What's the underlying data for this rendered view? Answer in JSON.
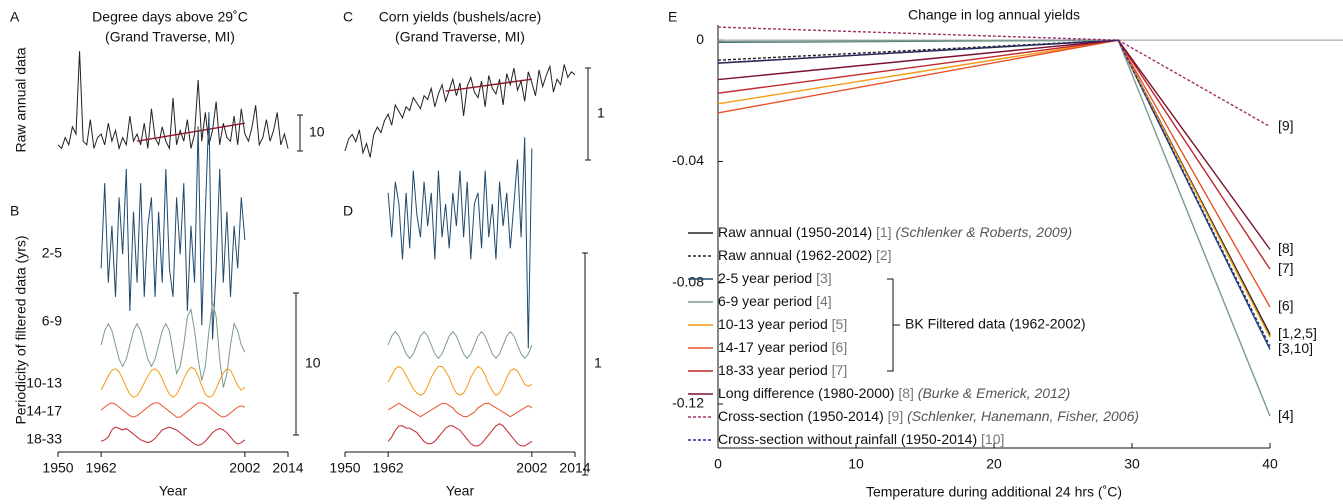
{
  "chart_data": [
    {
      "type": "line",
      "panel": "A",
      "title": [
        "Degree days above 29˚C",
        "(Grand Traverse, MI)"
      ],
      "ylabel": "Raw annual data",
      "scale_bar": 10,
      "xlim": [
        1950,
        2014
      ],
      "x": [
        1950,
        1951,
        1952,
        1953,
        1954,
        1955,
        1956,
        1957,
        1958,
        1959,
        1960,
        1961,
        1962,
        1963,
        1964,
        1965,
        1966,
        1967,
        1968,
        1969,
        1970,
        1971,
        1972,
        1973,
        1974,
        1975,
        1976,
        1977,
        1978,
        1979,
        1980,
        1981,
        1982,
        1983,
        1984,
        1985,
        1986,
        1987,
        1988,
        1989,
        1990,
        1991,
        1992,
        1993,
        1994,
        1995,
        1996,
        1997,
        1998,
        1999,
        2000,
        2001,
        2002,
        2003,
        2004,
        2005,
        2006,
        2007,
        2008,
        2009,
        2010,
        2011,
        2012,
        2013,
        2014
      ],
      "series": [
        {
          "color": "#222222",
          "values": [
            2,
            1,
            4,
            2,
            7,
            5,
            28,
            3,
            2,
            9,
            1,
            4,
            5,
            2,
            8,
            3,
            6,
            1,
            4,
            2,
            10,
            3,
            5,
            2,
            8,
            1,
            12,
            4,
            2,
            7,
            3,
            1,
            15,
            2,
            6,
            3,
            9,
            1,
            5,
            20,
            3,
            11,
            2,
            6,
            14,
            2,
            8,
            4,
            3,
            10,
            2,
            12,
            5,
            3,
            7,
            13,
            2,
            4,
            9,
            3,
            6,
            11,
            2,
            5,
            1
          ]
        },
        {
          "color": "#8b1a2b",
          "x": [
            1972,
            2002
          ],
          "values": [
            3,
            8
          ]
        }
      ]
    },
    {
      "type": "line",
      "panel": "B",
      "ylabel": "Periodicity of filtered data (yrs)",
      "scale_bar": 10,
      "xlim": [
        1950,
        2014
      ],
      "xticks": [
        1950,
        1962,
        2002,
        2014
      ],
      "xlabel": "Year",
      "x": [
        1962,
        1963,
        1964,
        1965,
        1966,
        1967,
        1968,
        1969,
        1970,
        1971,
        1972,
        1973,
        1974,
        1975,
        1976,
        1977,
        1978,
        1979,
        1980,
        1981,
        1982,
        1983,
        1984,
        1985,
        1986,
        1987,
        1988,
        1989,
        1990,
        1991,
        1992,
        1993,
        1994,
        1995,
        1996,
        1997,
        1998,
        1999,
        2000,
        2001,
        2002
      ],
      "series": [
        {
          "name": "2-5",
          "color": "#1e4a6e",
          "values": [
            -2,
            4,
            -3,
            1,
            -4,
            3,
            -1,
            5,
            -5,
            2,
            -3,
            4,
            -4,
            1,
            3,
            -4,
            2,
            -3,
            5,
            -2,
            -4,
            3,
            -1,
            4,
            -5,
            1,
            -3,
            8,
            -6,
            2,
            9,
            -7,
            -2,
            5,
            -3,
            2,
            -4,
            1,
            -2,
            3,
            0
          ]
        },
        {
          "name": "6-9",
          "color": "#7a9a8c",
          "values": [
            0,
            1,
            1.5,
            1,
            0,
            -1,
            -1.5,
            -1,
            0,
            1,
            1.5,
            1,
            0,
            -1,
            -1.5,
            -1,
            0,
            1,
            1.5,
            1,
            -0.5,
            -2,
            -1.5,
            0,
            2,
            2.5,
            1,
            -1,
            -2.5,
            -1.5,
            1,
            3,
            2,
            -1,
            -3,
            -2,
            0,
            1.5,
            1,
            0,
            -0.5
          ]
        },
        {
          "name": "10-13",
          "color": "#f39c12",
          "values": [
            -0.5,
            0,
            0.5,
            0.9,
            1,
            0.8,
            0.3,
            -0.3,
            -0.8,
            -1,
            -0.9,
            -0.5,
            0,
            0.5,
            0.9,
            1,
            0.8,
            0.3,
            -0.3,
            -0.8,
            -1,
            -0.8,
            -0.3,
            0.3,
            0.8,
            1.1,
            1,
            0.5,
            -0.2,
            -0.8,
            -1,
            -0.9,
            -0.4,
            0.2,
            0.7,
            1,
            0.9,
            0.4,
            -0.2,
            -0.5,
            -0.3
          ]
        },
        {
          "name": "14-17",
          "color": "#e8532a",
          "values": [
            0,
            0.2,
            0.4,
            0.5,
            0.4,
            0.2,
            0,
            -0.2,
            -0.4,
            -0.5,
            -0.4,
            -0.2,
            0,
            0.2,
            0.4,
            0.5,
            0.5,
            0.3,
            0.1,
            -0.1,
            -0.3,
            -0.5,
            -0.5,
            -0.3,
            -0.1,
            0.1,
            0.3,
            0.5,
            0.5,
            0.4,
            0.2,
            0,
            -0.2,
            -0.4,
            -0.5,
            -0.4,
            -0.2,
            0,
            0.2,
            0.3,
            0.2
          ]
        },
        {
          "name": "18-33",
          "color": "#c0282d",
          "values": [
            -0.3,
            -0.2,
            0,
            0.5,
            0.7,
            0.6,
            0.5,
            0.6,
            0.4,
            0.2,
            0,
            -0.2,
            -0.3,
            -0.4,
            -0.3,
            -0.1,
            0.2,
            0.5,
            0.6,
            0.7,
            0.6,
            0.5,
            0.3,
            0.1,
            -0.1,
            -0.3,
            -0.5,
            -0.6,
            -0.5,
            -0.3,
            0,
            0.3,
            0.5,
            0.6,
            0.5,
            0.3,
            0,
            -0.3,
            -0.5,
            -0.4,
            -0.2
          ]
        }
      ]
    },
    {
      "type": "line",
      "panel": "C",
      "title": [
        "Corn yields (bushels/acre)",
        "(Grand Traverse, MI)"
      ],
      "scale_bar": 1,
      "xlim": [
        1950,
        2014
      ],
      "x": [
        1950,
        1951,
        1952,
        1953,
        1954,
        1955,
        1956,
        1957,
        1958,
        1959,
        1960,
        1961,
        1962,
        1963,
        1964,
        1965,
        1966,
        1967,
        1968,
        1969,
        1970,
        1971,
        1972,
        1973,
        1974,
        1975,
        1976,
        1977,
        1978,
        1979,
        1980,
        1981,
        1982,
        1983,
        1984,
        1985,
        1986,
        1987,
        1988,
        1989,
        1990,
        1991,
        1992,
        1993,
        1994,
        1995,
        1996,
        1997,
        1998,
        1999,
        2000,
        2001,
        2002,
        2003,
        2004,
        2005,
        2006,
        2007,
        2008,
        2009,
        2010,
        2011,
        2012,
        2013,
        2014
      ],
      "series": [
        {
          "color": "#222222",
          "values": [
            0.12,
            0.25,
            0.3,
            0.22,
            0.35,
            0.1,
            0.2,
            0.05,
            0.3,
            0.38,
            0.32,
            0.45,
            0.52,
            0.4,
            0.62,
            0.55,
            0.48,
            0.6,
            0.56,
            0.7,
            0.64,
            0.58,
            0.72,
            0.68,
            0.8,
            0.6,
            0.74,
            0.84,
            0.66,
            0.78,
            0.9,
            0.72,
            0.86,
            0.5,
            0.82,
            0.92,
            0.76,
            0.7,
            0.88,
            0.6,
            0.94,
            0.8,
            0.74,
            0.9,
            0.62,
            0.96,
            0.84,
            1.02,
            0.78,
            0.88,
            0.66,
            0.98,
            0.86,
            0.72,
            1.0,
            0.82,
            0.94,
            1.04,
            0.76,
            0.9,
            0.84,
            1.06,
            0.92,
            0.98,
            0.95
          ]
        },
        {
          "color": "#8b1a2b",
          "x": [
            1978,
            2002
          ],
          "values": [
            0.77,
            0.9
          ]
        }
      ]
    },
    {
      "type": "line",
      "panel": "D",
      "scale_bar": 1,
      "xlim": [
        1950,
        2014
      ],
      "xticks": [
        1950,
        1962,
        2002,
        2014
      ],
      "xlabel": "Year",
      "x": [
        1962,
        1963,
        1964,
        1965,
        1966,
        1967,
        1968,
        1969,
        1970,
        1971,
        1972,
        1973,
        1974,
        1975,
        1976,
        1977,
        1978,
        1979,
        1980,
        1981,
        1982,
        1983,
        1984,
        1985,
        1986,
        1987,
        1988,
        1989,
        1990,
        1991,
        1992,
        1993,
        1994,
        1995,
        1996,
        1997,
        1998,
        1999,
        2000,
        2001,
        2002
      ],
      "series": [
        {
          "color": "#1e4a6e",
          "values": [
            0.1,
            -0.1,
            0.15,
            0.05,
            -0.2,
            0.1,
            -0.15,
            0.2,
            0,
            -0.1,
            0.15,
            -0.05,
            0.1,
            -0.2,
            0.2,
            -0.1,
            0.05,
            -0.15,
            0.1,
            -0.05,
            0.2,
            -0.1,
            0.15,
            -0.2,
            0.05,
            0.1,
            -0.15,
            0.2,
            -0.1,
            0.05,
            -0.2,
            0.15,
            -0.05,
            0.1,
            -0.15,
            0.05,
            0.25,
            -0.1,
            0.35,
            -0.6,
            0.3
          ]
        },
        {
          "color": "#7a9a8c",
          "values": [
            0,
            0.04,
            0.06,
            0.04,
            0,
            -0.04,
            -0.06,
            -0.04,
            0,
            0.04,
            0.06,
            0.04,
            0,
            -0.04,
            -0.06,
            -0.04,
            0,
            0.04,
            0.06,
            0.04,
            0,
            -0.04,
            -0.06,
            -0.04,
            0,
            0.04,
            0.06,
            0.04,
            0,
            -0.04,
            -0.06,
            -0.04,
            0,
            0.04,
            0.06,
            0.04,
            0,
            -0.04,
            -0.06,
            -0.04,
            0
          ]
        },
        {
          "color": "#f39c12",
          "values": [
            0,
            0.03,
            0.06,
            0.07,
            0.06,
            0.03,
            0,
            -0.03,
            -0.05,
            -0.06,
            -0.05,
            -0.02,
            0.02,
            0.05,
            0.07,
            0.07,
            0.05,
            0.02,
            -0.02,
            -0.05,
            -0.06,
            -0.05,
            -0.02,
            0.02,
            0.05,
            0.07,
            0.06,
            0.03,
            -0.01,
            -0.04,
            -0.06,
            -0.05,
            -0.02,
            0.02,
            0.05,
            0.06,
            0.05,
            0.02,
            -0.01,
            -0.02,
            -0.01
          ]
        },
        {
          "color": "#e8532a",
          "values": [
            0,
            0.01,
            0.02,
            0.03,
            0.02,
            0.01,
            0,
            -0.01,
            -0.02,
            -0.03,
            -0.02,
            -0.01,
            0,
            0.01,
            0.02,
            0.03,
            0.03,
            0.02,
            0.01,
            -0.01,
            -0.02,
            -0.03,
            -0.03,
            -0.02,
            -0.01,
            0.01,
            0.02,
            0.03,
            0.03,
            0.02,
            0.01,
            0,
            -0.01,
            -0.02,
            -0.03,
            -0.02,
            -0.01,
            0,
            0.01,
            0.02,
            0.01
          ]
        },
        {
          "color": "#c0282d",
          "values": [
            -0.02,
            0,
            0.03,
            0.05,
            0.05,
            0.04,
            0.04,
            0.03,
            0.02,
            0,
            -0.02,
            -0.03,
            -0.03,
            -0.02,
            0,
            0.02,
            0.04,
            0.05,
            0.05,
            0.04,
            0.03,
            0.01,
            -0.01,
            -0.03,
            -0.04,
            -0.04,
            -0.03,
            -0.01,
            0.01,
            0.03,
            0.05,
            0.06,
            0.05,
            0.03,
            0.01,
            -0.01,
            -0.03,
            -0.04,
            -0.04,
            -0.03,
            -0.02
          ]
        }
      ]
    },
    {
      "type": "line",
      "panel": "E",
      "title": "Change in log annual yields",
      "xlabel": "Temperature during additional 24 hrs (˚C)",
      "xlim": [
        0,
        40
      ],
      "xticks": [
        0,
        10,
        20,
        30,
        40
      ],
      "ylim": [
        -0.1345,
        0.005
      ],
      "yticks": [
        0,
        -0.04,
        -0.08,
        -0.12
      ],
      "x": [
        0,
        29,
        40
      ],
      "bracket_label": "BK Filtered data (1962-2002)",
      "series": [
        {
          "name": "Raw annual (1950-2014)",
          "ref": "[1]",
          "citation": "(Schlenker & Roberts, 2009)",
          "color": "#222222",
          "dash": false,
          "values": [
            -0.0076,
            0,
            -0.097
          ],
          "end_label": "[1,2,5]"
        },
        {
          "name": "Raw annual (1962-2002)",
          "ref": "[2]",
          "color": "#222222",
          "dash": true,
          "values": [
            -0.0066,
            0,
            -0.0975
          ]
        },
        {
          "name": "2-5 year period",
          "ref": "[3]",
          "color": "#1e4a6e",
          "dash": false,
          "values": [
            -0.0007,
            0,
            -0.102
          ],
          "end_label": "[3,10]"
        },
        {
          "name": "6-9 year period",
          "ref": "[4]",
          "color": "#7a9a8c",
          "dash": false,
          "values": [
            -0.0005,
            0,
            -0.124
          ],
          "end_label": "[4]"
        },
        {
          "name": "10-13 year period",
          "ref": "[5]",
          "color": "#f39c12",
          "dash": false,
          "values": [
            -0.021,
            0,
            -0.098
          ]
        },
        {
          "name": "14-17 year period",
          "ref": "[6]",
          "color": "#e8532a",
          "dash": false,
          "values": [
            -0.024,
            0,
            -0.088
          ],
          "end_label": "[6]"
        },
        {
          "name": "18-33 year period",
          "ref": "[7]",
          "color": "#c0282d",
          "dash": false,
          "values": [
            -0.0175,
            0,
            -0.0755
          ],
          "end_label": "[7]"
        },
        {
          "name": "Long difference (1980-2000)",
          "ref": "[8]",
          "citation": "(Burke & Emerick, 2012)",
          "color": "#7a1030",
          "dash": false,
          "values": [
            -0.013,
            0,
            -0.069
          ],
          "end_label": "[8]"
        },
        {
          "name": "Cross-section (1950-2014)",
          "ref": "[9]",
          "citation": "(Schlenker, Hanemann, Fisher, 2006)",
          "color": "#a0306a",
          "dash": true,
          "values": [
            0.0043,
            0,
            -0.0285
          ],
          "end_label": "[9]"
        },
        {
          "name": "Cross-section without rainfall (1950-2014)",
          "ref": "[10]",
          "color": "#2a2a8a",
          "dash": true,
          "values": [
            -0.0075,
            0,
            -0.101
          ]
        }
      ]
    }
  ]
}
